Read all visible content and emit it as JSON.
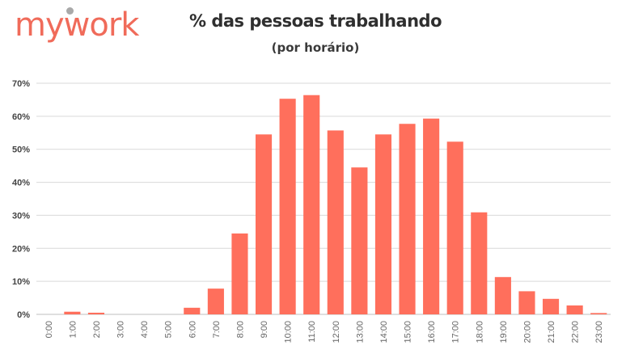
{
  "logo": {
    "text_before": "my",
    "text_after": "work"
  },
  "chart_data": {
    "type": "bar",
    "title": "% das pessoas trabalhando",
    "subtitle": "(por horário)",
    "categories": [
      "0:00",
      "1:00",
      "2:00",
      "3:00",
      "4:00",
      "5:00",
      "6:00",
      "7:00",
      "8:00",
      "9:00",
      "10:00",
      "11:00",
      "12:00",
      "13:00",
      "14:00",
      "15:00",
      "16:00",
      "17:00",
      "18:00",
      "19:00",
      "20:00",
      "21:00",
      "22:00",
      "23:00"
    ],
    "values": [
      0,
      0.8,
      0.5,
      0,
      0,
      0,
      2,
      7.8,
      24.5,
      54.5,
      65.3,
      66.4,
      55.7,
      44.5,
      54.5,
      57.7,
      59.3,
      52.3,
      30.9,
      11.3,
      7,
      4.7,
      2.7,
      0.4
    ],
    "yticks": [
      "0%",
      "10%",
      "20%",
      "30%",
      "40%",
      "50%",
      "60%",
      "70%"
    ],
    "ylim": [
      0,
      70
    ],
    "xlabel": "",
    "ylabel": "",
    "grid": true,
    "bar_color": "#ff6f5c",
    "grid_color": "#d9d9d9"
  }
}
